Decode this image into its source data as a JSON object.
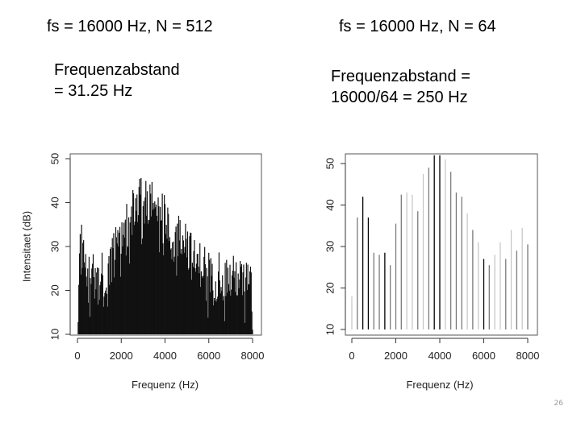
{
  "slide": {
    "title_left": "fs = 16000 Hz, N = 512",
    "title_right": "fs = 16000 Hz, N = 64",
    "note_left_lines": [
      "Frequenzabstand",
      "= 31.25 Hz"
    ],
    "note_right_lines": [
      "Frequenzabstand =",
      "16000/64 =  250 Hz"
    ],
    "page_mark": "26"
  },
  "chart_data": [
    {
      "type": "bar",
      "xlabel": "Frequenz (Hz)",
      "ylabel": "Intensitaet (dB)",
      "xlim": [
        0,
        8000
      ],
      "ylim": [
        10,
        50
      ],
      "x_ticks": [
        0,
        2000,
        4000,
        6000,
        8000
      ],
      "y_ticks": [
        10,
        20,
        30,
        40,
        50
      ],
      "spacing_hz": 31.25,
      "envelope_x": [
        0,
        100,
        200,
        350,
        500,
        700,
        900,
        1100,
        1300,
        1500,
        1700,
        1900,
        2100,
        2300,
        2500,
        2700,
        2900,
        3100,
        3300,
        3500,
        3700,
        3900,
        4100,
        4300,
        4500,
        4700,
        4900,
        5100,
        5300,
        5500,
        5700,
        5900,
        6100,
        6300,
        6500,
        6700,
        6900,
        7100,
        7300,
        7500,
        7700,
        7900,
        8000
      ],
      "envelope_y": [
        18,
        30,
        36,
        32,
        26,
        27,
        25,
        28,
        27,
        30,
        32,
        35,
        37,
        38,
        41,
        43,
        44,
        44,
        43,
        44,
        43,
        41,
        38,
        34,
        35,
        37,
        36,
        33,
        30,
        29,
        30,
        28,
        27,
        26,
        28,
        27,
        26,
        26,
        27,
        25,
        26,
        24,
        22
      ]
    },
    {
      "type": "bar",
      "xlabel": "Frequenz (Hz)",
      "ylabel": "",
      "xlim": [
        0,
        8000
      ],
      "ylim": [
        10,
        50
      ],
      "x_ticks": [
        0,
        2000,
        4000,
        6000,
        8000
      ],
      "y_ticks": [
        10,
        20,
        30,
        40,
        50
      ],
      "spacing_hz": 250,
      "x": [
        0,
        250,
        500,
        750,
        1000,
        1250,
        1500,
        1750,
        2000,
        2250,
        2500,
        2750,
        3000,
        3250,
        3500,
        3750,
        4000,
        4250,
        4500,
        4750,
        5000,
        5250,
        5500,
        5750,
        6000,
        6250,
        6500,
        6750,
        7000,
        7250,
        7500,
        7750,
        8000
      ],
      "values": [
        18,
        37,
        42,
        37,
        28.5,
        28,
        28.5,
        25.5,
        35.5,
        42.5,
        43,
        42.5,
        38.5,
        47.5,
        49,
        52,
        52,
        51,
        48,
        43,
        42,
        38,
        34,
        31,
        27,
        25.5,
        28,
        31,
        27,
        34,
        29,
        34.5,
        30.5
      ],
      "value_colors": [
        "#c8c8c8",
        "#7a7a7a",
        "#000000",
        "#000000",
        "#7a7a7a",
        "#7a7a7a",
        "#000000",
        "#7a7a7a",
        "#7a7a7a",
        "#7a7a7a",
        "#c8c8c8",
        "#c8c8c8",
        "#7a7a7a",
        "#c8c8c8",
        "#7a7a7a",
        "#000000",
        "#000000",
        "#c8c8c8",
        "#7a7a7a",
        "#7a7a7a",
        "#7a7a7a",
        "#c8c8c8",
        "#7a7a7a",
        "#c8c8c8",
        "#000000",
        "#7a7a7a",
        "#c8c8c8",
        "#c8c8c8",
        "#7a7a7a",
        "#c8c8c8",
        "#7a7a7a",
        "#c8c8c8",
        "#7a7a7a"
      ]
    }
  ]
}
